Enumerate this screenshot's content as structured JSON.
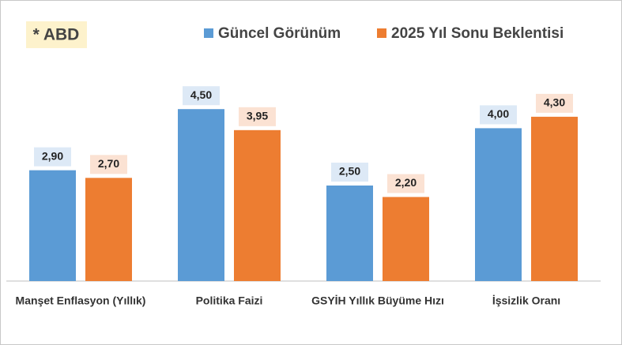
{
  "chart_data": {
    "type": "bar",
    "title": "* ABD",
    "categories": [
      "Manşet Enflasyon (Yıllık)",
      "Politika Faizi",
      "GSYİH Yıllık Büyüme Hızı",
      "İşsizlik Oranı"
    ],
    "series": [
      {
        "name": "Güncel Görünüm",
        "color": "#5b9bd5",
        "values": [
          2.9,
          4.5,
          2.5,
          4.0
        ],
        "value_labels": [
          "2,90",
          "4,50",
          "2,50",
          "4,00"
        ]
      },
      {
        "name": "2025 Yıl Sonu Beklentisi",
        "color": "#ed7d31",
        "values": [
          2.7,
          3.95,
          2.2,
          4.3
        ],
        "value_labels": [
          "2,70",
          "3,95",
          "2,20",
          "4,30"
        ]
      }
    ],
    "ylim": [
      0,
      5
    ],
    "legend": "top"
  }
}
